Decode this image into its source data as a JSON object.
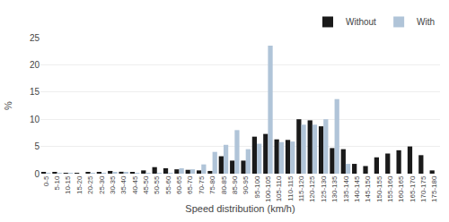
{
  "chart_data": {
    "type": "bar",
    "xlabel": "Speed distribution (km/h)",
    "ylabel": "%",
    "categories": [
      "0-5",
      "5-10",
      "10-15",
      "15-20",
      "20-25",
      "25-30",
      "30-35",
      "35-40",
      "40-45",
      "45-50",
      "50-55",
      "55-60",
      "60-65",
      "65-70",
      "70-75",
      "75-80",
      "80-85",
      "85-90",
      "90-95",
      "95-100",
      "100-105",
      "105-110",
      "110-115",
      "115-120",
      "120-125",
      "125-130",
      "130-135",
      "135-140",
      "140-145",
      "145-150",
      "150-155",
      "155-160",
      "160-165",
      "165-170",
      "170-175",
      "175-180"
    ],
    "series": [
      {
        "name": "Without",
        "color": "#1a1a1a",
        "values": [
          0.2,
          0.2,
          0.15,
          0.1,
          0.3,
          0.2,
          0.5,
          0.35,
          0.3,
          0.6,
          1.2,
          1.0,
          0.8,
          0.7,
          0.6,
          0.5,
          3.2,
          2.4,
          2.4,
          6.8,
          7.3,
          6.3,
          6.2,
          10.0,
          9.8,
          8.7,
          4.7,
          4.5,
          1.8,
          1.4,
          3.0,
          3.7,
          4.3,
          5.0,
          3.4,
          0.6
        ]
      },
      {
        "name": "With",
        "color": "#b0c4d8",
        "values": [
          0.1,
          0.1,
          0.05,
          0.0,
          0.1,
          0.1,
          0.2,
          0.2,
          0.1,
          0.1,
          0.1,
          0.1,
          1.0,
          0.8,
          1.7,
          4.0,
          5.3,
          8.0,
          4.5,
          5.5,
          23.5,
          5.8,
          5.9,
          9.0,
          9.0,
          10.0,
          13.7,
          1.8,
          0.0,
          0.0,
          0.0,
          0.0,
          0.0,
          0.0,
          0.0,
          0.0
        ]
      }
    ],
    "ylim": [
      0,
      25
    ],
    "yticks": [
      0,
      5,
      10,
      15,
      20,
      25
    ],
    "grid": true,
    "legend": "upper right"
  }
}
